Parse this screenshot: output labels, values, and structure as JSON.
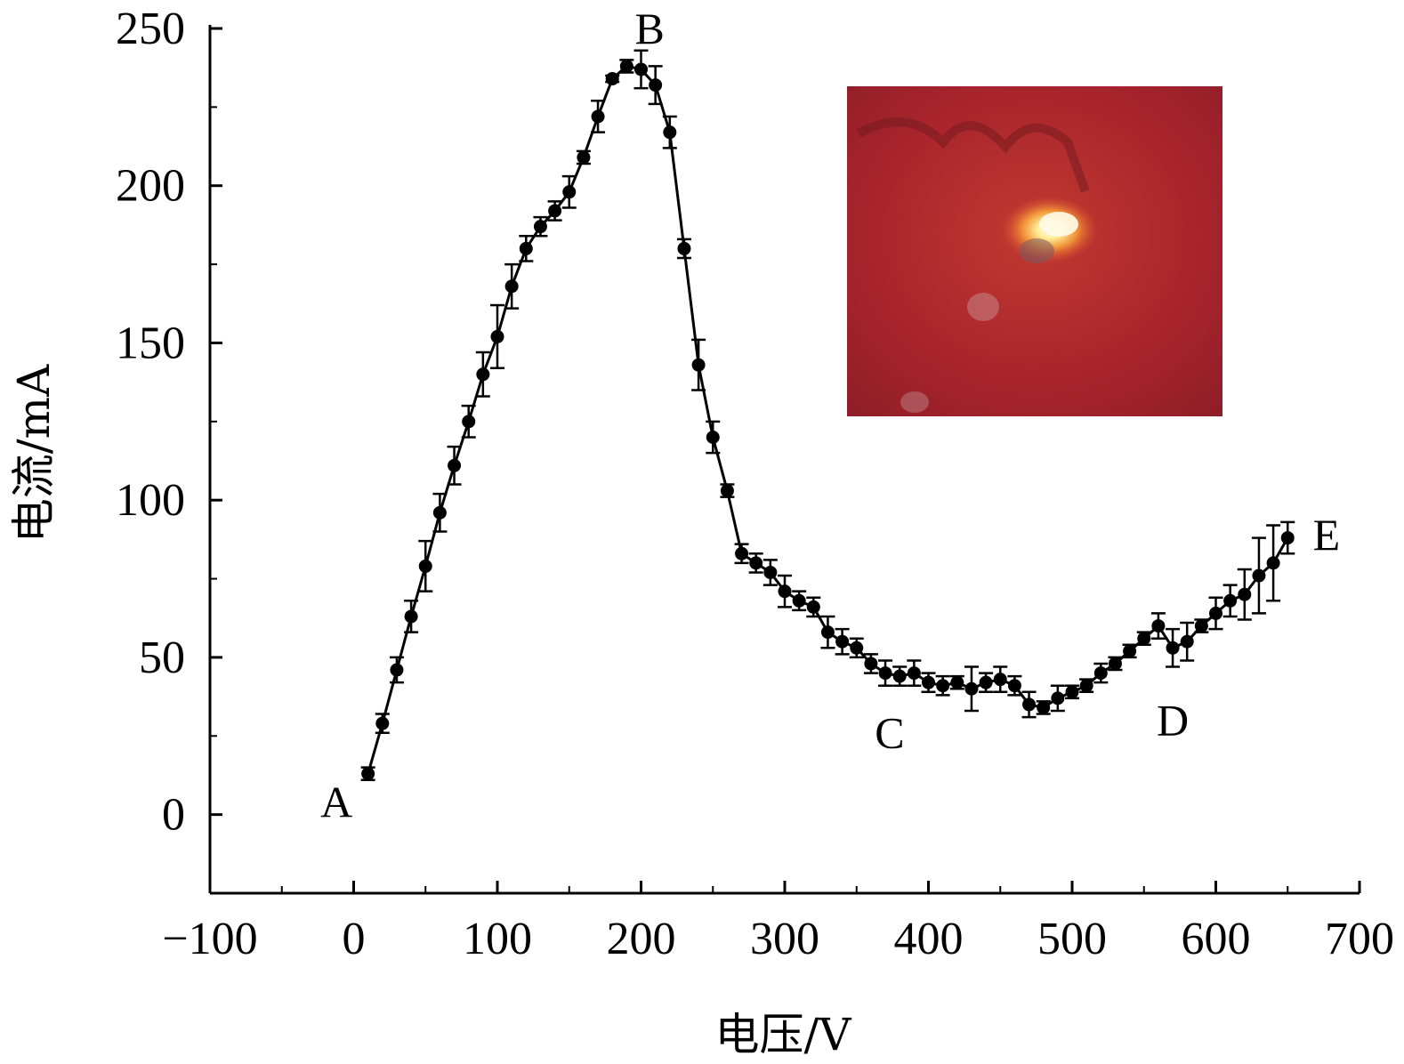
{
  "chart_data": {
    "type": "line",
    "xlabel": "电压/V",
    "ylabel": "电流/mA",
    "xlim": [
      -100,
      700
    ],
    "ylim": [
      -25,
      250
    ],
    "xticks": [
      -100,
      0,
      100,
      200,
      300,
      400,
      500,
      600,
      700
    ],
    "xtick_labels": [
      "−100",
      "0",
      "100",
      "200",
      "300",
      "400",
      "500",
      "600",
      "700"
    ],
    "yticks": [
      0,
      50,
      100,
      150,
      200,
      250
    ],
    "ytick_labels": [
      "0",
      "50",
      "100",
      "150",
      "200",
      "250"
    ],
    "grid": false,
    "legend": "none",
    "marker": "filled-circle",
    "line_color": "#000000",
    "series": [
      {
        "x": [
          10,
          20,
          30,
          40,
          50,
          60,
          70,
          80,
          90,
          100,
          110,
          120,
          130,
          140,
          150,
          160,
          170,
          180,
          190,
          200,
          210,
          220,
          230,
          240,
          250,
          260,
          270,
          280,
          290,
          300,
          310,
          320,
          330,
          340,
          350,
          360,
          370,
          380,
          390,
          400,
          410,
          420,
          430,
          440,
          450,
          460,
          470,
          480,
          490,
          500,
          510,
          520,
          530,
          540,
          550,
          560,
          570,
          580,
          590,
          600,
          610,
          620,
          630,
          640,
          650
        ],
        "y": [
          13,
          29,
          46,
          63,
          79,
          96,
          111,
          125,
          140,
          152,
          168,
          180,
          187,
          192,
          198,
          209,
          222,
          234,
          238,
          237,
          232,
          217,
          180,
          143,
          120,
          103,
          83,
          80,
          77,
          71,
          68,
          66,
          58,
          55,
          53,
          48,
          45,
          44,
          45,
          42,
          41,
          42,
          40,
          42,
          43,
          41,
          35,
          34,
          37,
          39,
          41,
          45,
          48,
          52,
          56,
          60,
          53,
          55,
          60,
          64,
          68,
          70,
          76,
          80,
          88
        ],
        "error": [
          2,
          3,
          4,
          5,
          8,
          6,
          6,
          5,
          7,
          10,
          7,
          4,
          3,
          3,
          5,
          2,
          5,
          1,
          2,
          6,
          6,
          5,
          3,
          8,
          5,
          2,
          3,
          3,
          4,
          5,
          3,
          3,
          5,
          4,
          3,
          3,
          4,
          3,
          4,
          3,
          3,
          2,
          7,
          3,
          4,
          3,
          4,
          2,
          4,
          2,
          2,
          3,
          2,
          2,
          2,
          4,
          6,
          6,
          2,
          5,
          5,
          8,
          12,
          12,
          5
        ]
      }
    ],
    "annotations": [
      {
        "text": "A",
        "x": -12,
        "y": 4
      },
      {
        "text": "B",
        "x": 206,
        "y": 250
      },
      {
        "text": "C",
        "x": 373,
        "y": 26
      },
      {
        "text": "D",
        "x": 570,
        "y": 30
      },
      {
        "text": "E",
        "x": 677,
        "y": 89
      }
    ]
  },
  "inset": {
    "background": "#a8242c",
    "glow": "#fff3a0",
    "description_icon": "photo-icon"
  }
}
